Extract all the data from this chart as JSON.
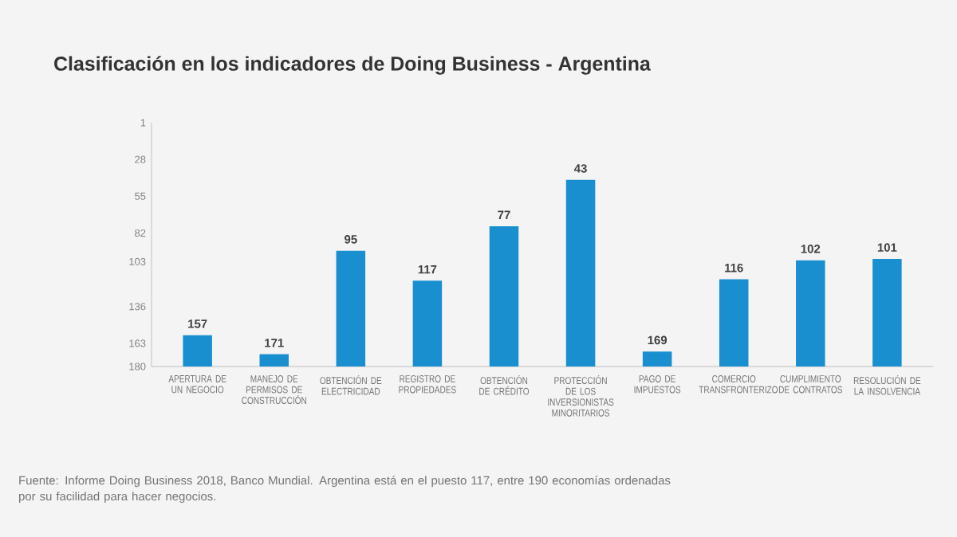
{
  "chart_data": {
    "type": "bar",
    "title": "Clasificación en los indicadores de Doing Business - Argentina",
    "categories": [
      "APERTURA DE UN NEGOCIO",
      "MANEJO DE PERMISOS DE CONSTRUCCIÓN",
      "OBTENCIÓN DE ELECTRICIDAD",
      "REGISTRO DE PROPIEDADES",
      "OBTENCIÓN DE CRÉDITO",
      "PROTECCIÓN DE LOS INVERSIONISTAS MINORITARIOS",
      "PAGO DE IMPUESTOS",
      "COMERCIO TRANSFRONTERIZO",
      "CUMPLIMIENTO DE CONTRATOS",
      "RESOLUCIÓN DE LA INSOLVENCIA"
    ],
    "base": [
      180,
      180,
      180,
      180,
      180,
      180,
      180,
      180,
      180,
      180
    ],
    "values": [
      -23,
      -9,
      -85,
      -63,
      -103,
      -137,
      -11,
      -64,
      -78,
      -79
    ],
    "value_labels": [
      "157",
      "171",
      "95",
      "117",
      "77",
      "43",
      "169",
      "116",
      "102",
      "101"
    ],
    "color": "#1a8fd0",
    "ylim": [
      180,
      1
    ],
    "yticks": [
      1,
      28,
      55,
      82,
      103,
      136,
      163,
      180
    ],
    "grid": false,
    "annotations": [
      "Fuente: Informe Doing Business 2018, Banco Mundial. Argentina está en el puesto 117, entre 190 economías ordenadas por su facilidad para hacer negocios."
    ]
  }
}
